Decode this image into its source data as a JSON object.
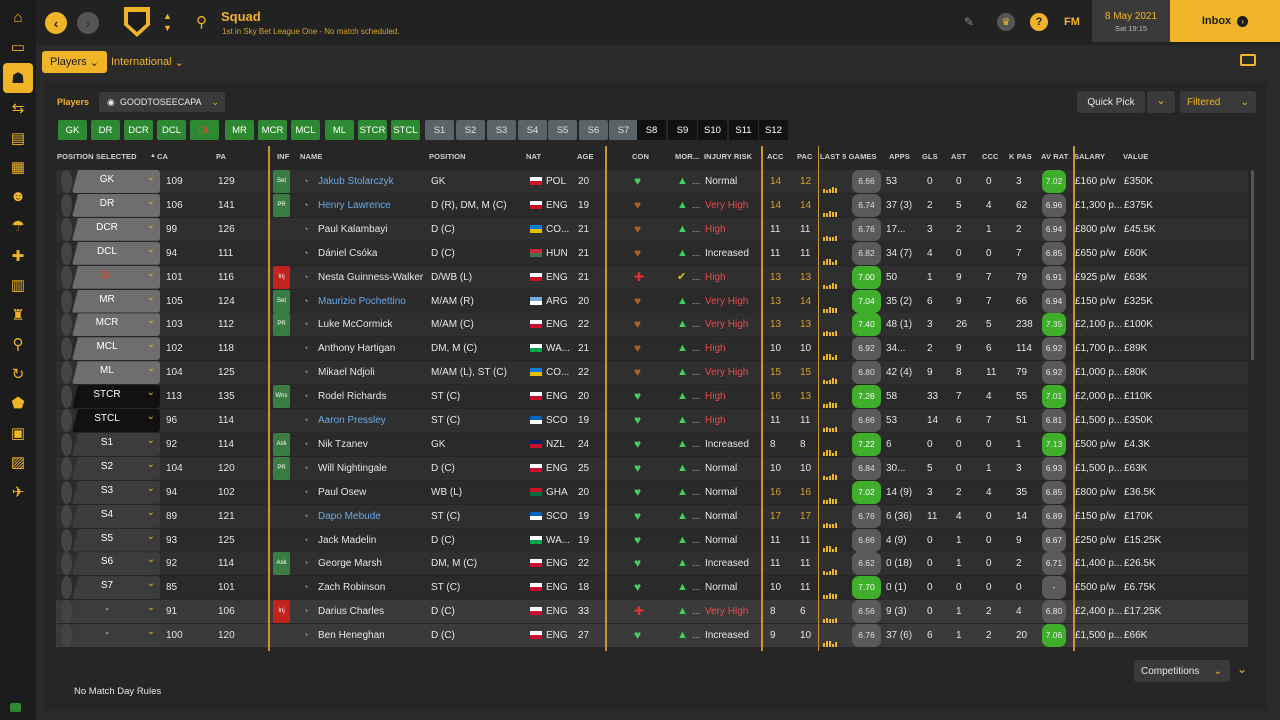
{
  "header": {
    "title": "Squad",
    "subtitle": "1st in Sky Bet League One - No match scheduled.",
    "date": "8 May 2021",
    "day_time": "Sat 19:15",
    "inbox": "Inbox",
    "fm": "FM",
    "help": "?"
  },
  "tabs": {
    "players": "Players",
    "international": "International"
  },
  "filter": {
    "label": "Players",
    "view": "GOODTOSEECAPA",
    "quick_pick": "Quick Pick",
    "filtered": "Filtered"
  },
  "positions": [
    "GK",
    "DR",
    "DCR",
    "DCL",
    "DL",
    "MR",
    "MCR",
    "MCL",
    "ML",
    "STCR",
    "STCL",
    "S1",
    "S2",
    "S3",
    "S4",
    "S5",
    "S6",
    "S7",
    "S8",
    "S9",
    "S10",
    "S11",
    "S12"
  ],
  "columns": {
    "position_selected": "POSITION SELECTED",
    "ca": "CA",
    "pa": "PA",
    "inf": "INF",
    "name": "NAME",
    "position": "POSITION",
    "nat": "NAT",
    "age": "AGE",
    "con": "CON",
    "mor": "MOR...",
    "injury_risk": "INJURY RISK",
    "acc": "ACC",
    "pac": "PAC",
    "last5": "LAST 5 GAMES",
    "apps": "APPS",
    "gls": "GLS",
    "ast": "AST",
    "ccc": "CCC",
    "kpas": "K PAS",
    "avrat": "AV RAT",
    "salary": "SALARY",
    "value": "VALUE"
  },
  "players": [
    {
      "sel": "GK",
      "ca": "109",
      "pa": "129",
      "inf": "Set",
      "name": "Jakub Stolarczyk",
      "pos": "GK",
      "nat": "POL",
      "age": "20",
      "risk": "Normal",
      "acc": "14",
      "pac": "12",
      "l5": "6.66",
      "apps": "53",
      "gls": "0",
      "ast": "0",
      "ccc": "0",
      "kpas": "3",
      "avrat": "7.02",
      "salary": "£160 p/w",
      "value": "£350K"
    },
    {
      "sel": "DR",
      "ca": "106",
      "pa": "141",
      "inf": "PR",
      "name": "Henry Lawrence",
      "pos": "D (R), DM, M (C)",
      "nat": "ENG",
      "age": "19",
      "risk": "Very High",
      "acc": "14",
      "pac": "14",
      "l5": "6.74",
      "apps": "37 (3)",
      "gls": "2",
      "ast": "5",
      "ccc": "4",
      "kpas": "62",
      "avrat": "6.96",
      "salary": "£1,300 p...",
      "value": "£375K"
    },
    {
      "sel": "DCR",
      "ca": "99",
      "pa": "126",
      "inf": "",
      "name": "Paul Kalambayi",
      "pos": "D (C)",
      "nat": "CO...",
      "age": "21",
      "risk": "High",
      "acc": "11",
      "pac": "11",
      "l5": "6.76",
      "apps": "17...",
      "gls": "3",
      "ast": "2",
      "ccc": "1",
      "kpas": "2",
      "avrat": "6.94",
      "salary": "£800 p/w",
      "value": "£45.5K"
    },
    {
      "sel": "DCL",
      "ca": "94",
      "pa": "111",
      "inf": "",
      "name": "Dániel Csóka",
      "pos": "D (C)",
      "nat": "HUN",
      "age": "21",
      "risk": "Increased",
      "acc": "11",
      "pac": "11",
      "l5": "6.82",
      "apps": "34 (7)",
      "gls": "4",
      "ast": "0",
      "ccc": "0",
      "kpas": "7",
      "avrat": "6.85",
      "salary": "£650 p/w",
      "value": "£60K"
    },
    {
      "sel": "DL",
      "ca": "101",
      "pa": "116",
      "inf": "Inj",
      "name": "Nesta Guinness-Walker",
      "pos": "D/WB (L)",
      "nat": "ENG",
      "age": "21",
      "risk": "High",
      "acc": "13",
      "pac": "13",
      "l5": "7.00",
      "apps": "50",
      "gls": "1",
      "ast": "9",
      "ccc": "7",
      "kpas": "79",
      "avrat": "6.91",
      "salary": "£925 p/w",
      "value": "£63K"
    },
    {
      "sel": "MR",
      "ca": "105",
      "pa": "124",
      "inf": "Set",
      "name": "Maurizio Pochettino",
      "pos": "M/AM (R)",
      "nat": "ARG",
      "age": "20",
      "risk": "Very High",
      "acc": "13",
      "pac": "14",
      "l5": "7.04",
      "apps": "35 (2)",
      "gls": "6",
      "ast": "9",
      "ccc": "7",
      "kpas": "66",
      "avrat": "6.94",
      "salary": "£150 p/w",
      "value": "£325K"
    },
    {
      "sel": "MCR",
      "ca": "103",
      "pa": "112",
      "inf": "PR",
      "name": "Luke McCormick",
      "pos": "M/AM (C)",
      "nat": "ENG",
      "age": "22",
      "risk": "Very High",
      "acc": "13",
      "pac": "13",
      "l5": "7.40",
      "apps": "48 (1)",
      "gls": "3",
      "ast": "26",
      "ccc": "5",
      "kpas": "238",
      "avrat": "7.35",
      "salary": "£2,100 p...",
      "value": "£100K"
    },
    {
      "sel": "MCL",
      "ca": "102",
      "pa": "118",
      "inf": "",
      "name": "Anthony Hartigan",
      "pos": "DM, M (C)",
      "nat": "WA...",
      "age": "21",
      "risk": "High",
      "acc": "10",
      "pac": "10",
      "l5": "6.92",
      "apps": "34...",
      "gls": "2",
      "ast": "9",
      "ccc": "6",
      "kpas": "114",
      "avrat": "6.92",
      "salary": "£1,700 p...",
      "value": "£89K"
    },
    {
      "sel": "ML",
      "ca": "104",
      "pa": "125",
      "inf": "",
      "name": "Mikael Ndjoli",
      "pos": "M/AM (L), ST (C)",
      "nat": "CO...",
      "age": "22",
      "risk": "Very High",
      "acc": "15",
      "pac": "15",
      "l5": "6.80",
      "apps": "42 (4)",
      "gls": "9",
      "ast": "8",
      "ccc": "11",
      "kpas": "79",
      "avrat": "6.92",
      "salary": "£1,000 p...",
      "value": "£80K"
    },
    {
      "sel": "STCR",
      "ca": "113",
      "pa": "135",
      "inf": "Wns",
      "name": "Rodel Richards",
      "pos": "ST (C)",
      "nat": "ENG",
      "age": "20",
      "risk": "High",
      "acc": "16",
      "pac": "13",
      "l5": "7.26",
      "apps": "58",
      "gls": "33",
      "ast": "7",
      "ccc": "4",
      "kpas": "55",
      "avrat": "7.01",
      "salary": "£2,000 p...",
      "value": "£110K"
    },
    {
      "sel": "STCL",
      "ca": "96",
      "pa": "114",
      "inf": "",
      "name": "Aaron Pressley",
      "pos": "ST (C)",
      "nat": "SCO",
      "age": "19",
      "risk": "High",
      "acc": "11",
      "pac": "11",
      "l5": "6.66",
      "apps": "53",
      "gls": "14",
      "ast": "6",
      "ccc": "7",
      "kpas": "51",
      "avrat": "6.81",
      "salary": "£1,500 p...",
      "value": "£350K"
    },
    {
      "sel": "S1",
      "ca": "92",
      "pa": "114",
      "inf": "Ask",
      "name": "Nik Tzanev",
      "pos": "GK",
      "nat": "NZL",
      "age": "24",
      "risk": "Increased",
      "acc": "8",
      "pac": "8",
      "l5": "7.22",
      "apps": "6",
      "gls": "0",
      "ast": "0",
      "ccc": "0",
      "kpas": "1",
      "avrat": "7.13",
      "salary": "£500 p/w",
      "value": "£4.3K"
    },
    {
      "sel": "S2",
      "ca": "104",
      "pa": "120",
      "inf": "PR",
      "name": "Will Nightingale",
      "pos": "D (C)",
      "nat": "ENG",
      "age": "25",
      "risk": "Normal",
      "acc": "10",
      "pac": "10",
      "l5": "6.84",
      "apps": "30...",
      "gls": "5",
      "ast": "0",
      "ccc": "1",
      "kpas": "3",
      "avrat": "6.93",
      "salary": "£1,500 p...",
      "value": "£63K"
    },
    {
      "sel": "S3",
      "ca": "94",
      "pa": "102",
      "inf": "",
      "name": "Paul Osew",
      "pos": "WB (L)",
      "nat": "GHA",
      "age": "20",
      "risk": "Normal",
      "acc": "16",
      "pac": "16",
      "l5": "7.02",
      "apps": "14 (9)",
      "gls": "3",
      "ast": "2",
      "ccc": "4",
      "kpas": "35",
      "avrat": "6.85",
      "salary": "£800 p/w",
      "value": "£36.5K"
    },
    {
      "sel": "S4",
      "ca": "89",
      "pa": "121",
      "inf": "",
      "name": "Dapo Mebude",
      "pos": "ST (C)",
      "nat": "SCO",
      "age": "19",
      "risk": "Normal",
      "acc": "17",
      "pac": "17",
      "l5": "6.76",
      "apps": "6 (36)",
      "gls": "11",
      "ast": "4",
      "ccc": "0",
      "kpas": "14",
      "avrat": "6.89",
      "salary": "£150 p/w",
      "value": "£170K"
    },
    {
      "sel": "S5",
      "ca": "93",
      "pa": "125",
      "inf": "",
      "name": "Jack Madelin",
      "pos": "D (C)",
      "nat": "WA...",
      "age": "19",
      "risk": "Normal",
      "acc": "11",
      "pac": "11",
      "l5": "6.66",
      "apps": "4 (9)",
      "gls": "0",
      "ast": "1",
      "ccc": "0",
      "kpas": "9",
      "avrat": "6.67",
      "salary": "£250 p/w",
      "value": "£15.25K"
    },
    {
      "sel": "S6",
      "ca": "92",
      "pa": "114",
      "inf": "Ask",
      "name": "George Marsh",
      "pos": "DM, M (C)",
      "nat": "ENG",
      "age": "22",
      "risk": "Increased",
      "acc": "11",
      "pac": "11",
      "l5": "6.62",
      "apps": "0 (18)",
      "gls": "0",
      "ast": "1",
      "ccc": "0",
      "kpas": "2",
      "avrat": "6.71",
      "salary": "£1,400 p...",
      "value": "£26.5K"
    },
    {
      "sel": "S7",
      "ca": "85",
      "pa": "101",
      "inf": "",
      "name": "Zach Robinson",
      "pos": "ST (C)",
      "nat": "ENG",
      "age": "18",
      "risk": "Normal",
      "acc": "10",
      "pac": "11",
      "l5": "7.70",
      "apps": "0 (1)",
      "gls": "0",
      "ast": "0",
      "ccc": "0",
      "kpas": "0",
      "avrat": "-",
      "salary": "£500 p/w",
      "value": "£6.75K"
    },
    {
      "sel": "-",
      "ca": "91",
      "pa": "106",
      "inf": "Inj",
      "name": "Darius Charles",
      "pos": "D (C)",
      "nat": "ENG",
      "age": "33",
      "risk": "Very High",
      "acc": "8",
      "pac": "6",
      "l5": "6.56",
      "apps": "9 (3)",
      "gls": "0",
      "ast": "1",
      "ccc": "2",
      "kpas": "4",
      "avrat": "6.80",
      "salary": "£2,400 p...",
      "value": "£17.25K"
    },
    {
      "sel": "-",
      "ca": "100",
      "pa": "120",
      "inf": "",
      "name": "Ben Heneghan",
      "pos": "D (C)",
      "nat": "ENG",
      "age": "27",
      "risk": "Increased",
      "acc": "9",
      "pac": "10",
      "l5": "6.76",
      "apps": "37 (6)",
      "gls": "6",
      "ast": "1",
      "ccc": "2",
      "kpas": "20",
      "avrat": "7.06",
      "salary": "£1,500 p...",
      "value": "£66K"
    }
  ],
  "footer": {
    "no_match_day": "No Match Day Rules",
    "competitions": "Competitions"
  }
}
